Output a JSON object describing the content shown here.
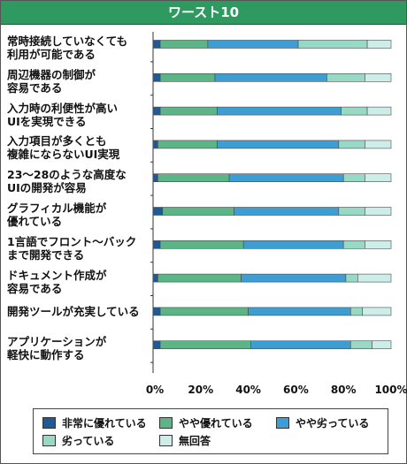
{
  "chart_data": {
    "type": "bar",
    "orientation": "horizontal",
    "stacked": "percent",
    "title": "ワースト10",
    "categories": [
      "常時接続していなくても\n利用が可能である",
      "周辺機器の制御が\n容易である",
      "入力時の利便性が高い\nUIを実現できる",
      "入力項目が多くとも\n複雑にならないUI実現",
      "23～28のような高度な\nUIの開発が容易",
      "グラフィカル機能が\n優れている",
      "1言語でフロント～バック\nまで開発できる",
      "ドキュメント作成が\n容易である",
      "開発ツールが充実している",
      "アプリケーションが\n軽快に動作する"
    ],
    "series": [
      {
        "name": "非常に優れている",
        "color": "#1f5a96",
        "values": [
          3,
          3,
          3,
          2,
          2,
          4,
          3,
          2,
          3,
          3
        ]
      },
      {
        "name": "やや優れている",
        "color": "#5bb587",
        "values": [
          20,
          23,
          24,
          25,
          30,
          30,
          35,
          35,
          37,
          38
        ]
      },
      {
        "name": "やや劣っている",
        "color": "#3d9ed3",
        "values": [
          38,
          47,
          52,
          51,
          48,
          44,
          42,
          44,
          43,
          42
        ]
      },
      {
        "name": "劣っている",
        "color": "#97d9c4",
        "values": [
          29,
          16,
          11,
          11,
          9,
          11,
          9,
          5,
          5,
          9
        ]
      },
      {
        "name": "無回答",
        "color": "#cdeee8",
        "values": [
          10,
          11,
          10,
          11,
          11,
          11,
          11,
          14,
          12,
          8
        ]
      }
    ],
    "xlim": [
      0,
      100
    ],
    "x_ticks": [
      "0%",
      "20%",
      "40%",
      "60%",
      "80%",
      "100%"
    ],
    "grid": false,
    "legend_position": "bottom"
  }
}
